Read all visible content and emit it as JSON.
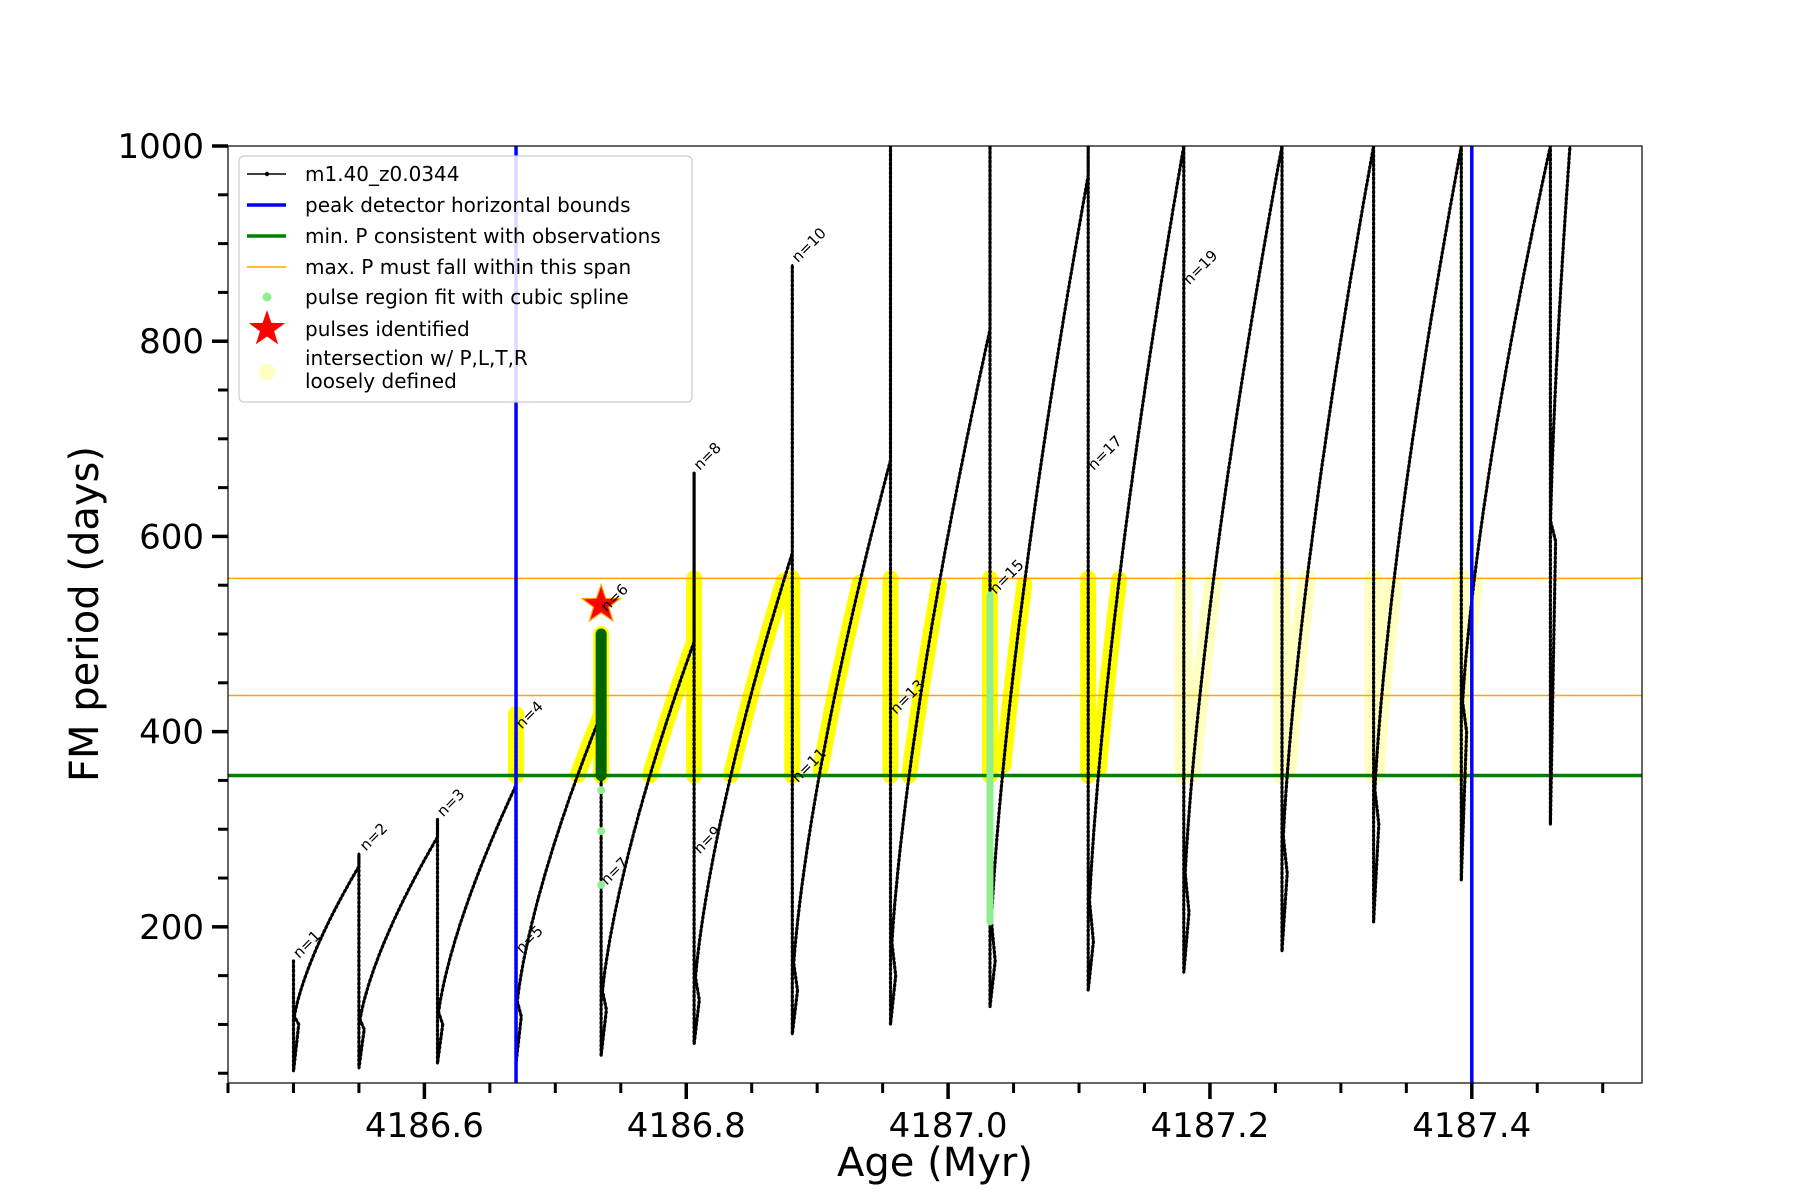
{
  "chart_data": {
    "type": "line",
    "title": "",
    "xlabel": "Age (Myr)",
    "ylabel": "FM period (days)",
    "xlim": [
      4186.45,
      4187.53
    ],
    "ylim": [
      40,
      1000
    ],
    "xticks": [
      4186.6,
      4186.8,
      4187.0,
      4187.2,
      4187.4
    ],
    "xtick_labels": [
      "4186.6",
      "4186.8",
      "4187.0",
      "4187.2",
      "4187.4"
    ],
    "xminor_step": 0.05,
    "yticks": [
      200,
      400,
      600,
      800,
      1000
    ],
    "ytick_labels": [
      "200",
      "400",
      "600",
      "800",
      "1000"
    ],
    "yminor_step": 50,
    "grid": false,
    "legend_position": "top-left",
    "legend": [
      {
        "label": "m1.40_z0.0344",
        "kind": "dotline",
        "color": "#000000"
      },
      {
        "label": "peak detector horizontal bounds",
        "kind": "line",
        "color": "#0000ff"
      },
      {
        "label": "min. P consistent with observations",
        "kind": "line",
        "color": "#008000"
      },
      {
        "label": "max. P must fall within this span",
        "kind": "thinline",
        "color": "#ffa500"
      },
      {
        "label": "pulse region fit with cubic spline",
        "kind": "dot",
        "color": "#90ee90"
      },
      {
        "label": "pulses identified",
        "kind": "star",
        "color": "#ff0000"
      },
      {
        "label": "intersection w/ P,L,T,R\nloosely defined",
        "kind": "bigdot",
        "color": "#ffffc0"
      }
    ],
    "colors": {
      "track": "#000000",
      "bounds": "#0000ff",
      "min_p": "#008000",
      "max_p_span": "#ffa500",
      "spline": "#90ee90",
      "pulse_region": "#006400",
      "star": "#ff0000",
      "intersection": "#ffff00",
      "intersection_faint": "#ffffc0"
    },
    "peak_detector_bounds_x": [
      4186.67,
      4187.4
    ],
    "min_p_consistent": 355,
    "max_p_span": [
      437,
      557
    ],
    "pulses_identified": [
      {
        "x": 4186.735,
        "y": 530
      }
    ],
    "pulse_regions": [
      {
        "x": 4186.735,
        "ymin": 355,
        "ymax": 500,
        "color": "#006400"
      },
      {
        "x": 4187.032,
        "ymin": 205,
        "ymax": 540,
        "color": "#90ee90"
      }
    ],
    "series": [
      {
        "name": "m1.40_z0.0344",
        "cycles": [
          {
            "start": 4186.5,
            "end": 4186.55,
            "low": 52,
            "start_p": 100,
            "peak": 262,
            "spike": 165
          },
          {
            "start": 4186.55,
            "end": 4186.61,
            "low": 55,
            "start_p": 95,
            "peak": 292,
            "spike": 275
          },
          {
            "start": 4186.61,
            "end": 4186.67,
            "low": 60,
            "start_p": 100,
            "peak": 345,
            "spike": 310
          },
          {
            "start": 4186.67,
            "end": 4186.735,
            "low": 60,
            "start_p": 108,
            "peak": 418,
            "spike": 400
          },
          {
            "start": 4186.735,
            "end": 4186.806,
            "low": 68,
            "start_p": 115,
            "peak": 492,
            "spike": 500
          },
          {
            "start": 4186.806,
            "end": 4186.881,
            "low": 80,
            "start_p": 125,
            "peak": 583,
            "spike": 665
          },
          {
            "start": 4186.881,
            "end": 4186.956,
            "low": 90,
            "start_p": 135,
            "peak": 678,
            "spike": 878
          },
          {
            "start": 4186.956,
            "end": 4187.032,
            "low": 100,
            "start_p": 150,
            "peak": 812,
            "spike": 1000
          },
          {
            "start": 4187.032,
            "end": 4187.107,
            "low": 118,
            "start_p": 165,
            "peak": 970,
            "spike": 1000
          },
          {
            "start": 4187.107,
            "end": 4187.18,
            "low": 135,
            "start_p": 185,
            "peak": 1000,
            "spike": 1000
          },
          {
            "start": 4187.18,
            "end": 4187.255,
            "low": 153,
            "start_p": 215,
            "peak": 1000,
            "spike": 1000
          },
          {
            "start": 4187.255,
            "end": 4187.325,
            "low": 175,
            "start_p": 255,
            "peak": 1000,
            "spike": 1000
          },
          {
            "start": 4187.325,
            "end": 4187.392,
            "low": 205,
            "start_p": 305,
            "peak": 1000,
            "spike": 1000
          },
          {
            "start": 4187.392,
            "end": 4187.46,
            "low": 248,
            "start_p": 400,
            "peak": 1000,
            "spike": 1000
          },
          {
            "start": 4187.46,
            "end": 4187.475,
            "low": 305,
            "start_p": 595,
            "peak": 1000,
            "spike": 1000
          }
        ]
      }
    ],
    "annotations": [
      {
        "text": "n=1",
        "x": 4186.502,
        "y": 165
      },
      {
        "text": "n=2",
        "x": 4186.553,
        "y": 275
      },
      {
        "text": "n=3",
        "x": 4186.612,
        "y": 310
      },
      {
        "text": "n=4",
        "x": 4186.672,
        "y": 400
      },
      {
        "text": "n=5",
        "x": 4186.672,
        "y": 170
      },
      {
        "text": "n=6",
        "x": 4186.737,
        "y": 520
      },
      {
        "text": "n=7",
        "x": 4186.737,
        "y": 240
      },
      {
        "text": "n=8",
        "x": 4186.808,
        "y": 665
      },
      {
        "text": "n=9",
        "x": 4186.808,
        "y": 272
      },
      {
        "text": "n=10",
        "x": 4186.883,
        "y": 878
      },
      {
        "text": "n=11",
        "x": 4186.883,
        "y": 345
      },
      {
        "text": "n=13",
        "x": 4186.958,
        "y": 415
      },
      {
        "text": "n=15",
        "x": 4187.034,
        "y": 538
      },
      {
        "text": "n=17",
        "x": 4187.109,
        "y": 665
      },
      {
        "text": "n=19",
        "x": 4187.182,
        "y": 855
      }
    ]
  }
}
